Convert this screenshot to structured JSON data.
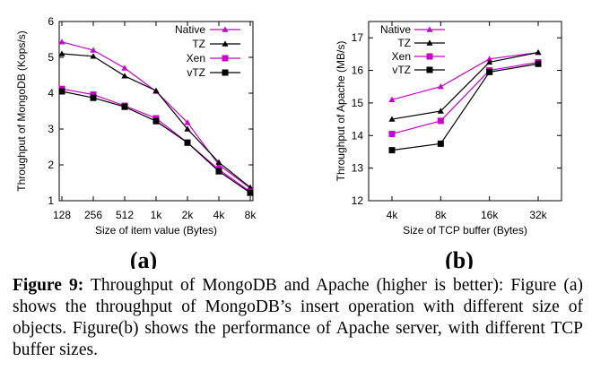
{
  "caption": {
    "label": "Figure 9:",
    "text": "Throughput of MongoDB and Apache (higher is better): Figure (a) shows the throughput of MongoDB’s insert operation with different size of objects. Figure(b) shows the performance of Apache server, with different TCP buffer sizes."
  },
  "chart_data": [
    {
      "type": "line",
      "panel_label": "(a)",
      "xlabel": "Size of item value (Bytes)",
      "ylabel": "Throughput of MongoDB (Kops/s)",
      "categories": [
        "128",
        "256",
        "512",
        "1k",
        "2k",
        "4k",
        "8k"
      ],
      "ylim": [
        1,
        6
      ],
      "yticks": [
        1,
        2,
        3,
        4,
        5,
        6
      ],
      "grid": false,
      "legend_position": "top-right",
      "series": [
        {
          "name": "Native",
          "color": "#cc00cc",
          "marker": "triangle",
          "values": [
            5.43,
            5.2,
            4.7,
            4.05,
            3.18,
            2.0,
            1.35
          ]
        },
        {
          "name": "TZ",
          "color": "#000000",
          "marker": "triangle",
          "values": [
            5.1,
            5.03,
            4.48,
            4.07,
            3.0,
            2.07,
            1.37
          ]
        },
        {
          "name": "Xen",
          "color": "#cc00cc",
          "marker": "square",
          "values": [
            4.12,
            3.96,
            3.65,
            3.3,
            2.62,
            1.87,
            1.25
          ]
        },
        {
          "name": "vTZ",
          "color": "#000000",
          "marker": "square",
          "values": [
            4.05,
            3.87,
            3.62,
            3.22,
            2.62,
            1.82,
            1.22
          ]
        }
      ]
    },
    {
      "type": "line",
      "panel_label": "(b)",
      "xlabel": "Size of TCP buffer (Bytes)",
      "ylabel": "Throughput of Apache (MB/s)",
      "categories": [
        "4k",
        "8k",
        "16k",
        "32k"
      ],
      "ylim": [
        12,
        17.5
      ],
      "yticks": [
        12,
        13,
        14,
        15,
        16,
        17
      ],
      "grid": false,
      "legend_position": "top-left",
      "series": [
        {
          "name": "Native",
          "color": "#cc00cc",
          "marker": "triangle",
          "values": [
            15.1,
            15.5,
            16.35,
            16.55
          ]
        },
        {
          "name": "TZ",
          "color": "#000000",
          "marker": "triangle",
          "values": [
            14.5,
            14.75,
            16.25,
            16.55
          ]
        },
        {
          "name": "Xen",
          "color": "#cc00cc",
          "marker": "square",
          "values": [
            14.05,
            14.45,
            16.0,
            16.25
          ]
        },
        {
          "name": "vTZ",
          "color": "#000000",
          "marker": "square",
          "values": [
            13.55,
            13.75,
            15.95,
            16.2
          ]
        }
      ]
    }
  ]
}
